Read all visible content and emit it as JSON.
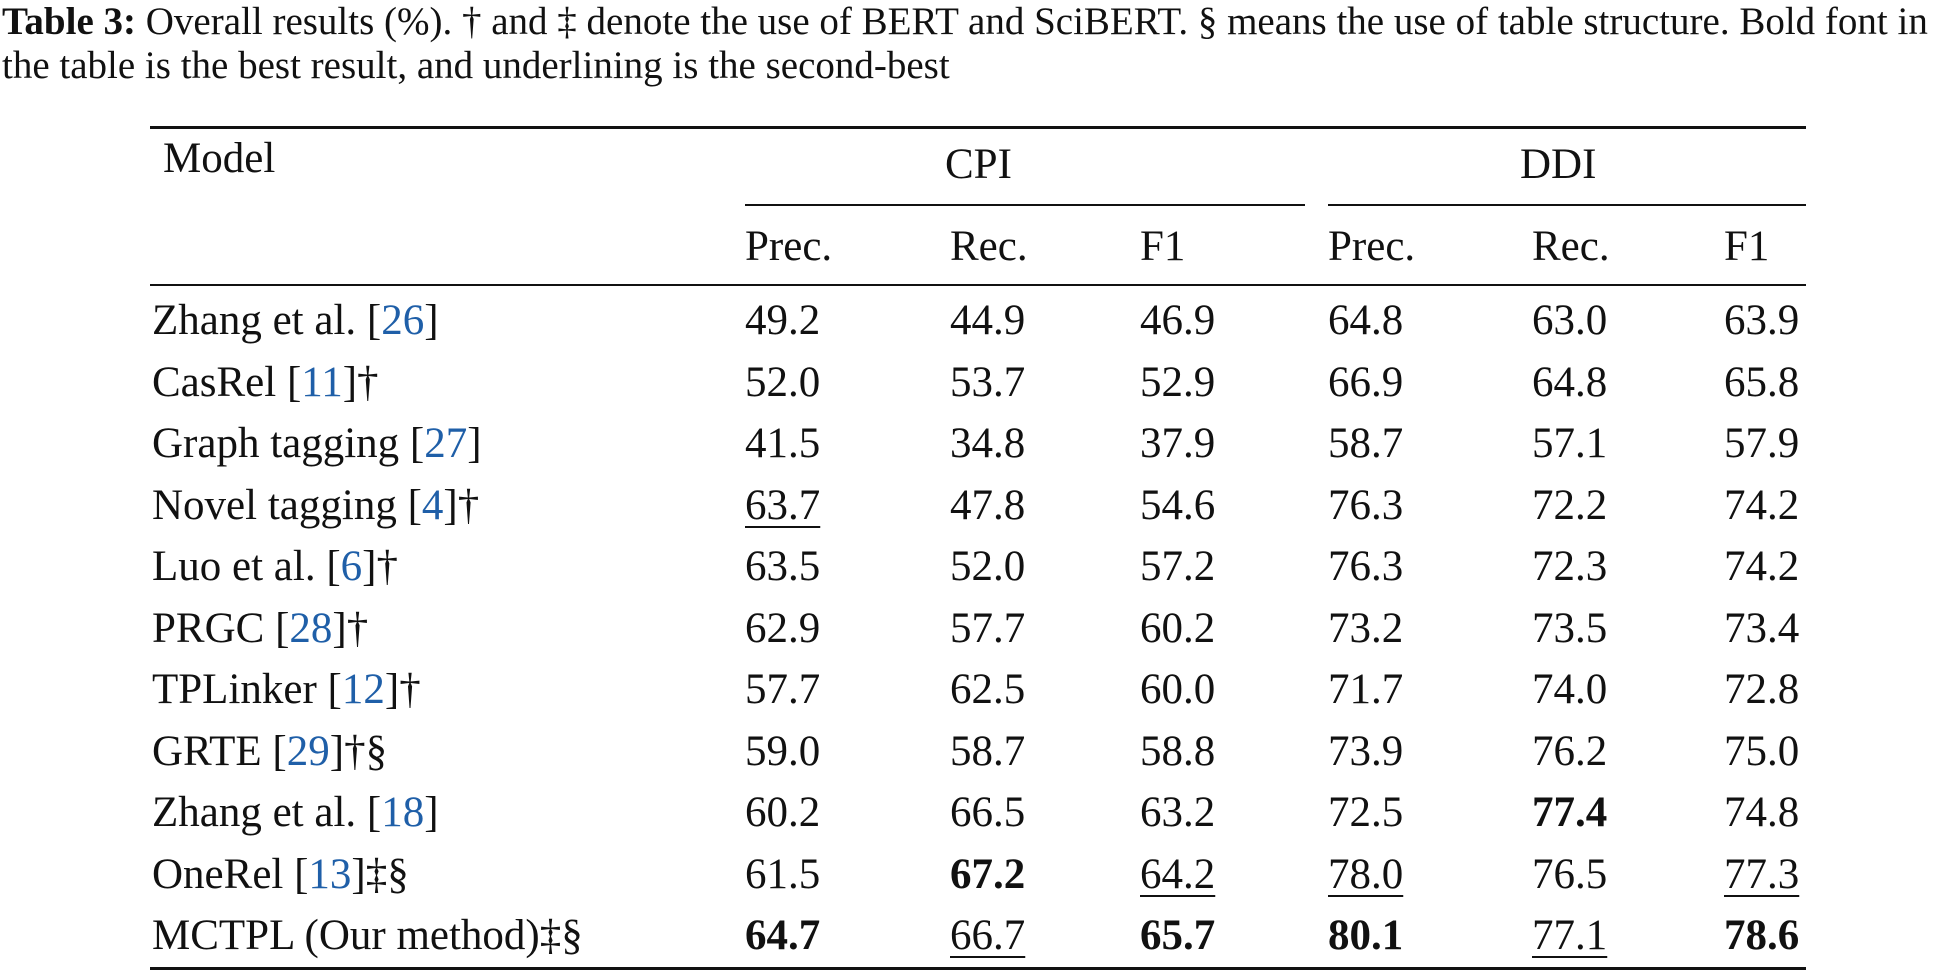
{
  "caption": {
    "label": "Table 3:",
    "text": " Overall results (%). † and ‡ denote the use of BERT and SciBERT. § means the use of table structure. Bold font in the table is the best result, and underlining is the second-best"
  },
  "header": {
    "model": "Model",
    "group_cpi": "CPI",
    "group_ddi": "DDI",
    "cols": [
      "Prec.",
      "Rec.",
      "F1",
      "Prec.",
      "Rec.",
      "F1"
    ]
  },
  "rows": [
    {
      "name": "Zhang et al. [",
      "cite": "26",
      "suffix": "]",
      "vals": [
        "49.2",
        "44.9",
        "46.9",
        "64.8",
        "63.0",
        "63.9"
      ],
      "fmt": [
        "",
        "",
        "",
        "",
        "",
        ""
      ]
    },
    {
      "name": "CasRel [",
      "cite": "11",
      "suffix": "]†",
      "vals": [
        "52.0",
        "53.7",
        "52.9",
        "66.9",
        "64.8",
        "65.8"
      ],
      "fmt": [
        "",
        "",
        "",
        "",
        "",
        ""
      ]
    },
    {
      "name": "Graph tagging [",
      "cite": "27",
      "suffix": "]",
      "vals": [
        "41.5",
        "34.8",
        "37.9",
        "58.7",
        "57.1",
        "57.9"
      ],
      "fmt": [
        "",
        "",
        "",
        "",
        "",
        ""
      ]
    },
    {
      "name": "Novel tagging [",
      "cite": "4",
      "suffix": "]†",
      "vals": [
        "63.7",
        "47.8",
        "54.6",
        "76.3",
        "72.2",
        "74.2"
      ],
      "fmt": [
        "u",
        "",
        "",
        "",
        "",
        ""
      ]
    },
    {
      "name": "Luo et al. [",
      "cite": "6",
      "suffix": "]†",
      "vals": [
        "63.5",
        "52.0",
        "57.2",
        "76.3",
        "72.3",
        "74.2"
      ],
      "fmt": [
        "",
        "",
        "",
        "",
        "",
        ""
      ]
    },
    {
      "name": "PRGC [",
      "cite": "28",
      "suffix": "]†",
      "vals": [
        "62.9",
        "57.7",
        "60.2",
        "73.2",
        "73.5",
        "73.4"
      ],
      "fmt": [
        "",
        "",
        "",
        "",
        "",
        ""
      ]
    },
    {
      "name": "TPLinker [",
      "cite": "12",
      "suffix": "]†",
      "vals": [
        "57.7",
        "62.5",
        "60.0",
        "71.7",
        "74.0",
        "72.8"
      ],
      "fmt": [
        "",
        "",
        "",
        "",
        "",
        ""
      ]
    },
    {
      "name": "GRTE [",
      "cite": "29",
      "suffix": "]†§",
      "vals": [
        "59.0",
        "58.7",
        "58.8",
        "73.9",
        "76.2",
        "75.0"
      ],
      "fmt": [
        "",
        "",
        "",
        "",
        "",
        ""
      ]
    },
    {
      "name": "Zhang et al. [",
      "cite": "18",
      "suffix": "]",
      "vals": [
        "60.2",
        "66.5",
        "63.2",
        "72.5",
        "77.4",
        "74.8"
      ],
      "fmt": [
        "",
        "",
        "",
        "",
        "b",
        ""
      ]
    },
    {
      "name": "OneRel [",
      "cite": "13",
      "suffix": "]‡§",
      "vals": [
        "61.5",
        "67.2",
        "64.2",
        "78.0",
        "76.5",
        "77.3"
      ],
      "fmt": [
        "",
        "b",
        "u",
        "u",
        "",
        "u"
      ]
    },
    {
      "name": "MCTPL (Our method)‡§",
      "cite": "",
      "suffix": "",
      "vals": [
        "64.7",
        "66.7",
        "65.7",
        "80.1",
        "77.1",
        "78.6"
      ],
      "fmt": [
        "b",
        "u",
        "b",
        "b",
        "u",
        "b"
      ]
    }
  ]
}
